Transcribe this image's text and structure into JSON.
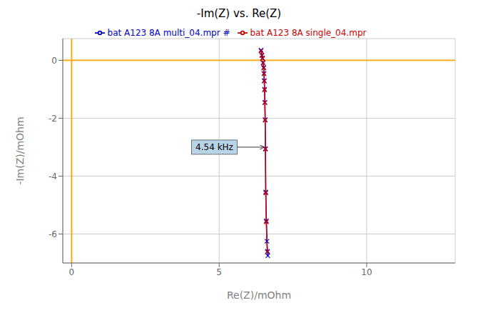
{
  "chart_data": {
    "type": "line",
    "title": "-Im(Z) vs. Re(Z)",
    "x_label": "Re(Z)/mOhm",
    "y_label": "-Im(Z)/mOhm",
    "xlim": [
      -0.3,
      13.0
    ],
    "ylim": [
      -7.0,
      0.75
    ],
    "xticks": [
      0,
      5,
      10
    ],
    "yticks": [
      0,
      -2,
      -4,
      -6
    ],
    "grid": true,
    "legend": "top",
    "series": [
      {
        "name": "bat A123 8A multi_04.mpr #",
        "color": "#0000CC",
        "marker": "x",
        "x": [
          6.42,
          6.45,
          6.47,
          6.49,
          6.51,
          6.52,
          6.53,
          6.54,
          6.55,
          6.56,
          6.57,
          6.58,
          6.6,
          6.62,
          6.64,
          6.65
        ],
        "values": [
          0.35,
          0.18,
          0.08,
          -0.08,
          -0.25,
          -0.45,
          -0.7,
          -1.0,
          -1.45,
          -2.05,
          -3.05,
          -4.55,
          -5.55,
          -6.25,
          -6.6,
          -6.75
        ]
      },
      {
        "name": "bat A123 8A single_04.mpr",
        "color": "#CC0000",
        "marker": "x",
        "x": [
          6.42,
          6.45,
          6.47,
          6.49,
          6.51,
          6.52,
          6.53,
          6.54,
          6.55,
          6.56,
          6.57,
          6.58,
          6.6,
          6.63
        ],
        "values": [
          0.32,
          0.16,
          0.06,
          -0.1,
          -0.27,
          -0.47,
          -0.72,
          -1.02,
          -1.47,
          -2.07,
          -3.07,
          -4.58,
          -5.58,
          -6.62
        ]
      }
    ],
    "reference_lines": [
      {
        "axis": "y",
        "value": 0.0,
        "color": "#FFA500"
      },
      {
        "axis": "x",
        "value": 0.0,
        "color": "#FFA500"
      }
    ],
    "annotations": [
      {
        "text": "4.54 kHz",
        "x": 6.58,
        "y": -3.0
      }
    ]
  }
}
